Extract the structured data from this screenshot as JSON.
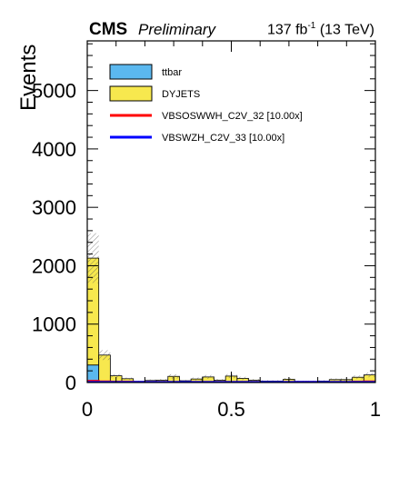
{
  "header": {
    "experiment": "CMS",
    "status": "Preliminary",
    "lumi_value": "137 fb",
    "lumi_exponent": "-1",
    "energy": "(13 TeV)"
  },
  "chart_data": {
    "type": "bar",
    "style": "stacked-histogram",
    "xlabel": "",
    "ylabel": "Events",
    "xlim": [
      0,
      1
    ],
    "ylim": [
      0,
      5850
    ],
    "x_ticks": [
      0,
      0.5,
      1
    ],
    "x_tick_labels": [
      "0",
      "0.5",
      "1"
    ],
    "y_ticks": [
      0,
      1000,
      2000,
      3000,
      4000,
      5000
    ],
    "y_tick_labels": [
      "0",
      "1000",
      "2000",
      "3000",
      "4000",
      "5000"
    ],
    "bin_edges": [
      0,
      0.04,
      0.08,
      0.12,
      0.16,
      0.2,
      0.24,
      0.28,
      0.32,
      0.36,
      0.4,
      0.44,
      0.48,
      0.52,
      0.56,
      0.6,
      0.64,
      0.68,
      0.72,
      0.76,
      0.8,
      0.84,
      0.88,
      0.92,
      0.96,
      1.0
    ],
    "legend_position": "top-left",
    "colors": {
      "ttbar": "#5bb8ef",
      "DYJETS": "#f7e84e",
      "VBSOSWWH_C2V_32": "#ff0000",
      "VBSWZH_C2V_33": "#0000ff"
    },
    "stacked_series": [
      {
        "name": "ttbar",
        "values": [
          300,
          10,
          5,
          5,
          0,
          5,
          0,
          5,
          0,
          0,
          5,
          0,
          0,
          0,
          0,
          0,
          0,
          5,
          0,
          0,
          0,
          0,
          0,
          0,
          10
        ]
      },
      {
        "name": "DYJETS",
        "values": [
          1830,
          460,
          110,
          60,
          20,
          30,
          40,
          100,
          30,
          60,
          90,
          40,
          110,
          70,
          40,
          25,
          25,
          50,
          20,
          20,
          25,
          50,
          50,
          90,
          120
        ]
      }
    ],
    "uncertainty_band": {
      "rel_err": [
        0.2,
        0.18,
        0.25,
        0.3,
        0.5,
        0.5,
        0.5,
        0.35,
        0.5,
        0.4,
        0.35,
        0.5,
        0.3,
        0.4,
        0.5,
        0.6,
        0.6,
        0.4,
        0.6,
        0.6,
        0.6,
        0.4,
        0.4,
        0.35,
        0.3
      ]
    },
    "line_series": [
      {
        "name": "VBSOSWWH_C2V_32 [10.00x]",
        "values": [
          30,
          20,
          15,
          15,
          10,
          10,
          10,
          10,
          10,
          10,
          10,
          10,
          10,
          10,
          10,
          10,
          10,
          10,
          10,
          10,
          10,
          10,
          10,
          15,
          20
        ]
      },
      {
        "name": "VBSWZH_C2V_33 [10.00x]",
        "values": [
          10,
          10,
          10,
          10,
          10,
          10,
          10,
          10,
          10,
          10,
          10,
          10,
          10,
          10,
          10,
          10,
          10,
          10,
          10,
          10,
          10,
          10,
          10,
          10,
          10
        ]
      }
    ],
    "legend": [
      {
        "label": "ttbar",
        "kind": "fill",
        "color": "#5bb8ef"
      },
      {
        "label": "DYJETS",
        "kind": "fill",
        "color": "#f7e84e"
      },
      {
        "label": "VBSOSWWH_C2V_32 [10.00x]",
        "kind": "line",
        "color": "#ff0000"
      },
      {
        "label": "VBSWZH_C2V_33 [10.00x]",
        "kind": "line",
        "color": "#0000ff"
      }
    ]
  }
}
